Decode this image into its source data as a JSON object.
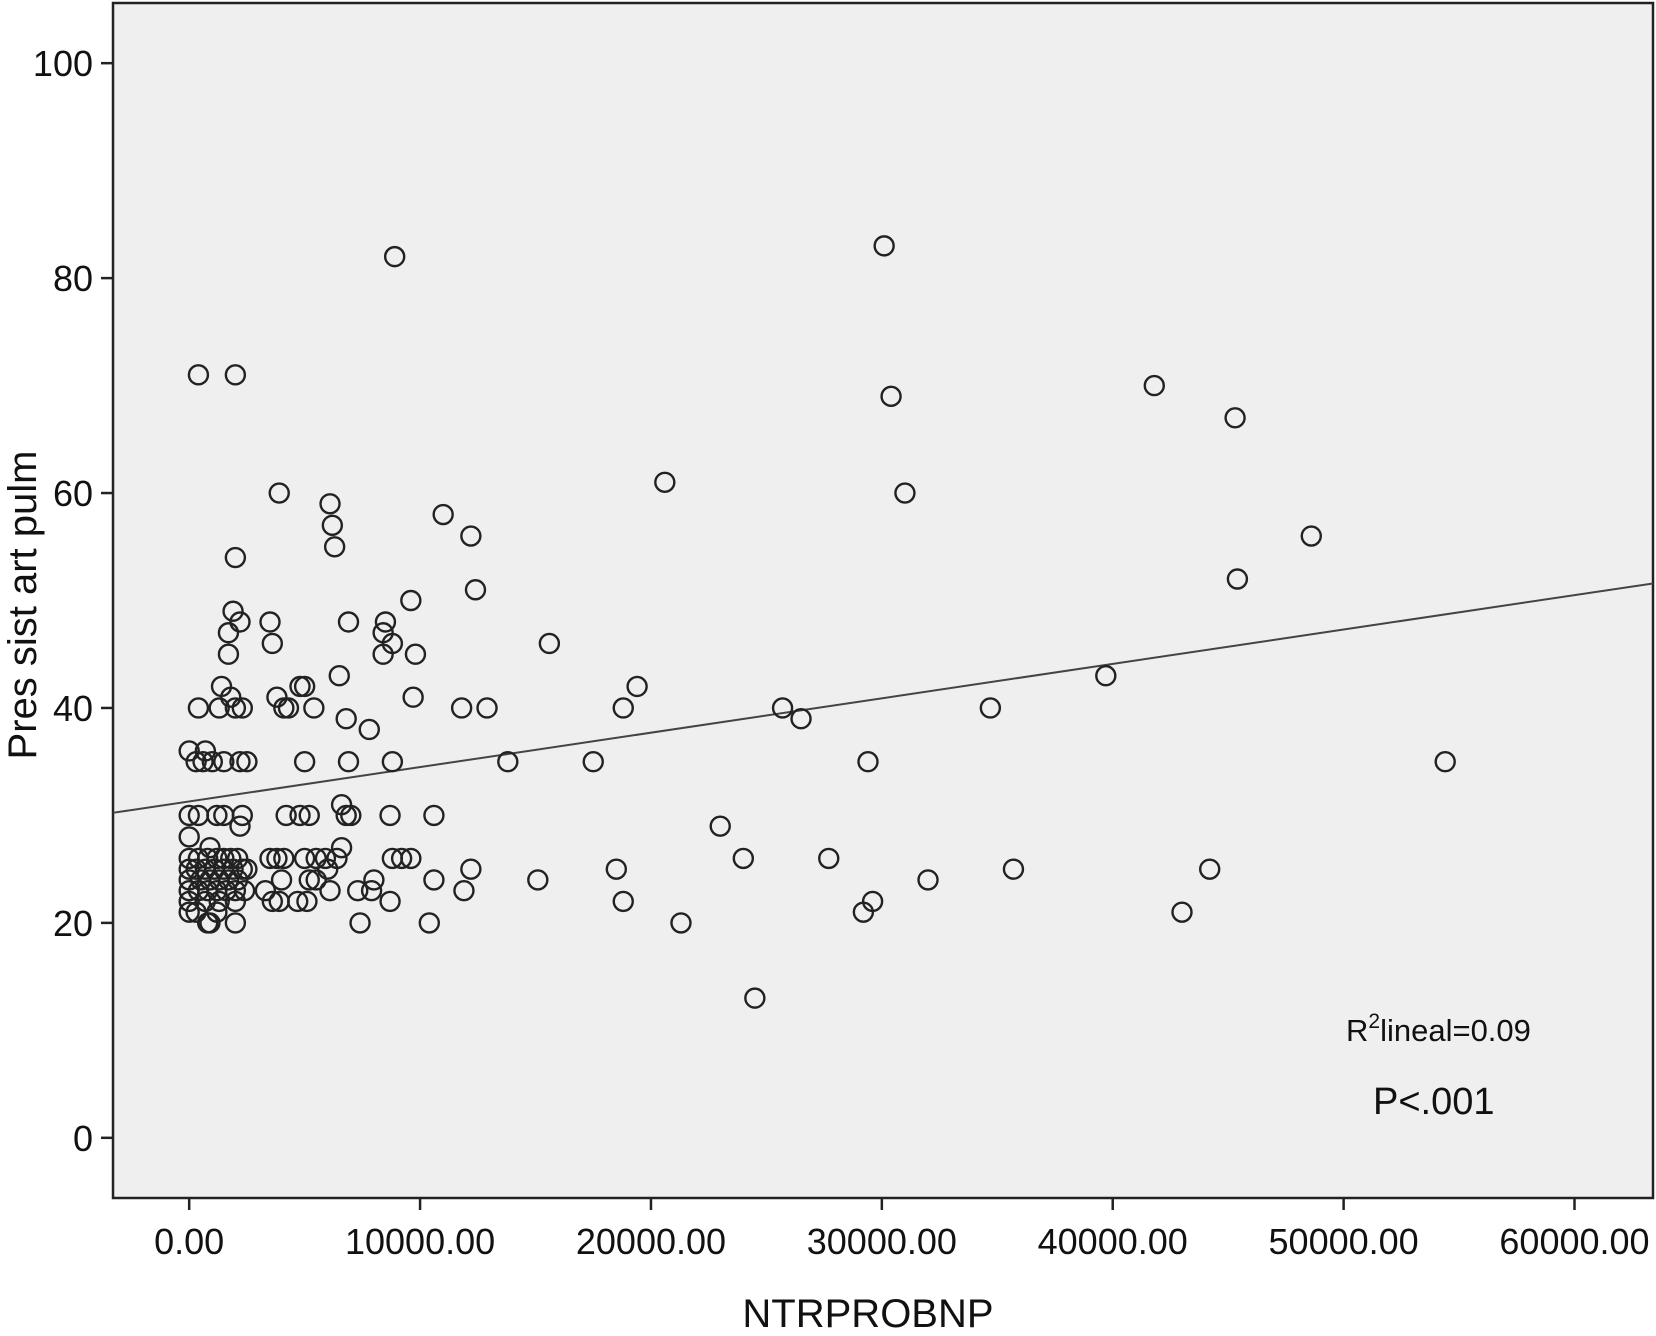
{
  "chart_data": {
    "type": "scatter",
    "xlabel": "NTRPROBNP",
    "ylabel": "Pres sist art pulm",
    "xlim": [
      -3300,
      63400
    ],
    "ylim": [
      -5.6,
      105.6
    ],
    "x_ticks": [
      0,
      10000,
      20000,
      30000,
      40000,
      50000,
      60000
    ],
    "x_tick_labels": [
      "0.00",
      "10000.00",
      "20000.00",
      "30000.00",
      "40000.00",
      "50000.00",
      "60000.00"
    ],
    "y_ticks": [
      0,
      20,
      40,
      60,
      80,
      100
    ],
    "y_tick_labels": [
      "0",
      "20",
      "40",
      "60",
      "80",
      "100"
    ],
    "grid": false,
    "colors": {
      "plot_background": "#efefef",
      "marker_stroke": "#222222",
      "line": "#444444"
    },
    "fit_line": {
      "type": "linear",
      "intercept": 31.3,
      "slope": 0.00032
    },
    "annotations": {
      "r2_prefix": "R",
      "r2_superscript": "2",
      "r2_rest": "lineal=0.09",
      "p_value": "P<.001"
    },
    "points": [
      [
        8900,
        82
      ],
      [
        30100,
        83
      ],
      [
        400,
        71
      ],
      [
        2000,
        71
      ],
      [
        30400,
        69
      ],
      [
        41800,
        70
      ],
      [
        45300,
        67
      ],
      [
        3900,
        60
      ],
      [
        20600,
        61
      ],
      [
        31000,
        60
      ],
      [
        6100,
        59
      ],
      [
        6200,
        57
      ],
      [
        6300,
        55
      ],
      [
        11000,
        58
      ],
      [
        12200,
        56
      ],
      [
        48600,
        56
      ],
      [
        2000,
        54
      ],
      [
        45400,
        52
      ],
      [
        12400,
        51
      ],
      [
        9600,
        50
      ],
      [
        1900,
        49
      ],
      [
        2200,
        48
      ],
      [
        3500,
        48
      ],
      [
        6900,
        48
      ],
      [
        8500,
        48
      ],
      [
        1700,
        47
      ],
      [
        8400,
        47
      ],
      [
        3600,
        46
      ],
      [
        8800,
        46
      ],
      [
        15600,
        46
      ],
      [
        1700,
        45
      ],
      [
        8400,
        45
      ],
      [
        9800,
        45
      ],
      [
        4800,
        42
      ],
      [
        5000,
        42
      ],
      [
        1400,
        42
      ],
      [
        19400,
        42
      ],
      [
        39700,
        43
      ],
      [
        6500,
        43
      ],
      [
        1800,
        41
      ],
      [
        3800,
        41
      ],
      [
        9700,
        41
      ],
      [
        400,
        40
      ],
      [
        1300,
        40
      ],
      [
        2000,
        40
      ],
      [
        2300,
        40
      ],
      [
        4100,
        40
      ],
      [
        4300,
        40
      ],
      [
        5400,
        40
      ],
      [
        11800,
        40
      ],
      [
        12900,
        40
      ],
      [
        18800,
        40
      ],
      [
        25700,
        40
      ],
      [
        34700,
        40
      ],
      [
        6800,
        39
      ],
      [
        26500,
        39
      ],
      [
        7800,
        38
      ],
      [
        0,
        36
      ],
      [
        700,
        36
      ],
      [
        300,
        35
      ],
      [
        600,
        35
      ],
      [
        1000,
        35
      ],
      [
        1500,
        35
      ],
      [
        2200,
        35
      ],
      [
        2500,
        35
      ],
      [
        5000,
        35
      ],
      [
        6900,
        35
      ],
      [
        8800,
        35
      ],
      [
        13800,
        35
      ],
      [
        17500,
        35
      ],
      [
        29400,
        35
      ],
      [
        54400,
        35
      ],
      [
        6600,
        31
      ],
      [
        0,
        30
      ],
      [
        400,
        30
      ],
      [
        1200,
        30
      ],
      [
        1500,
        30
      ],
      [
        2300,
        30
      ],
      [
        4200,
        30
      ],
      [
        4800,
        30
      ],
      [
        5200,
        30
      ],
      [
        6800,
        30
      ],
      [
        7000,
        30
      ],
      [
        8700,
        30
      ],
      [
        10600,
        30
      ],
      [
        23000,
        29
      ],
      [
        2200,
        29
      ],
      [
        0,
        28
      ],
      [
        6600,
        27
      ],
      [
        900,
        27
      ],
      [
        0,
        26
      ],
      [
        400,
        26
      ],
      [
        800,
        26
      ],
      [
        1200,
        26
      ],
      [
        1500,
        26
      ],
      [
        1800,
        26
      ],
      [
        2100,
        26
      ],
      [
        3500,
        26
      ],
      [
        3800,
        26
      ],
      [
        4100,
        26
      ],
      [
        5000,
        26
      ],
      [
        5500,
        26
      ],
      [
        5900,
        26
      ],
      [
        6400,
        26
      ],
      [
        8800,
        26
      ],
      [
        9200,
        26
      ],
      [
        9600,
        26
      ],
      [
        24000,
        26
      ],
      [
        27700,
        26
      ],
      [
        0,
        25
      ],
      [
        300,
        25
      ],
      [
        700,
        25
      ],
      [
        1100,
        25
      ],
      [
        1500,
        25
      ],
      [
        1900,
        25
      ],
      [
        2300,
        25
      ],
      [
        2500,
        25
      ],
      [
        6000,
        25
      ],
      [
        12200,
        25
      ],
      [
        18500,
        25
      ],
      [
        35700,
        25
      ],
      [
        44200,
        25
      ],
      [
        0,
        24
      ],
      [
        500,
        24
      ],
      [
        900,
        24
      ],
      [
        1300,
        24
      ],
      [
        1700,
        24
      ],
      [
        2100,
        24
      ],
      [
        4000,
        24
      ],
      [
        5200,
        24
      ],
      [
        5500,
        24
      ],
      [
        8000,
        24
      ],
      [
        10600,
        24
      ],
      [
        15100,
        24
      ],
      [
        32000,
        24
      ],
      [
        0,
        23
      ],
      [
        400,
        23
      ],
      [
        800,
        23
      ],
      [
        1200,
        23
      ],
      [
        1600,
        23
      ],
      [
        2000,
        23
      ],
      [
        2400,
        23
      ],
      [
        3300,
        23
      ],
      [
        6100,
        23
      ],
      [
        7300,
        23
      ],
      [
        7900,
        23
      ],
      [
        11900,
        23
      ],
      [
        0,
        22
      ],
      [
        700,
        22
      ],
      [
        1300,
        22
      ],
      [
        2000,
        22
      ],
      [
        3600,
        22
      ],
      [
        3900,
        22
      ],
      [
        4700,
        22
      ],
      [
        5100,
        22
      ],
      [
        8700,
        22
      ],
      [
        18800,
        22
      ],
      [
        29600,
        22
      ],
      [
        0,
        21
      ],
      [
        300,
        21
      ],
      [
        1200,
        21
      ],
      [
        29200,
        21
      ],
      [
        43000,
        21
      ],
      [
        800,
        20
      ],
      [
        900,
        20
      ],
      [
        2000,
        20
      ],
      [
        7400,
        20
      ],
      [
        10400,
        20
      ],
      [
        21300,
        20
      ],
      [
        24500,
        13
      ]
    ]
  }
}
